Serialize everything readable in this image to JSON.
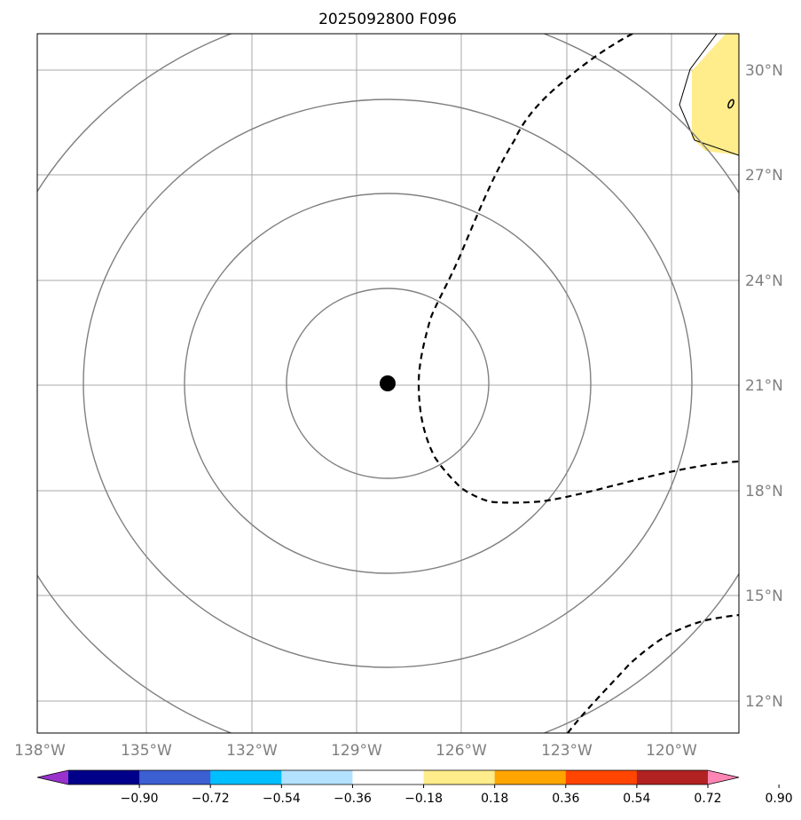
{
  "title": "2025092800 F096",
  "map": {
    "lat_labels": [
      "30°N",
      "27°N",
      "24°N",
      "21°N",
      "18°N",
      "15°N",
      "12°N"
    ],
    "lon_labels": [
      "138°W",
      "135°W",
      "132°W",
      "129°W",
      "126°W",
      "123°W",
      "120°W"
    ],
    "center_marker": {
      "lat": 21.0,
      "lon": -128.0
    },
    "land_fill_color": "#ffec8b",
    "contour_color": "#808080",
    "dashed_line_color": "#000000",
    "grid_color": "#a9a9a9"
  },
  "colorbar": {
    "ticks": [
      "−0.90",
      "−0.72",
      "−0.54",
      "−0.36",
      "−0.18",
      "0.18",
      "0.36",
      "0.54",
      "0.72",
      "0.90"
    ],
    "colors": [
      "#9932cc",
      "#00008b",
      "#3c5fd2",
      "#00bfff",
      "#b3e2ff",
      "#ffffff",
      "#ffec8b",
      "#ffa500",
      "#ff4500",
      "#b22222",
      "#ff85b4"
    ]
  }
}
